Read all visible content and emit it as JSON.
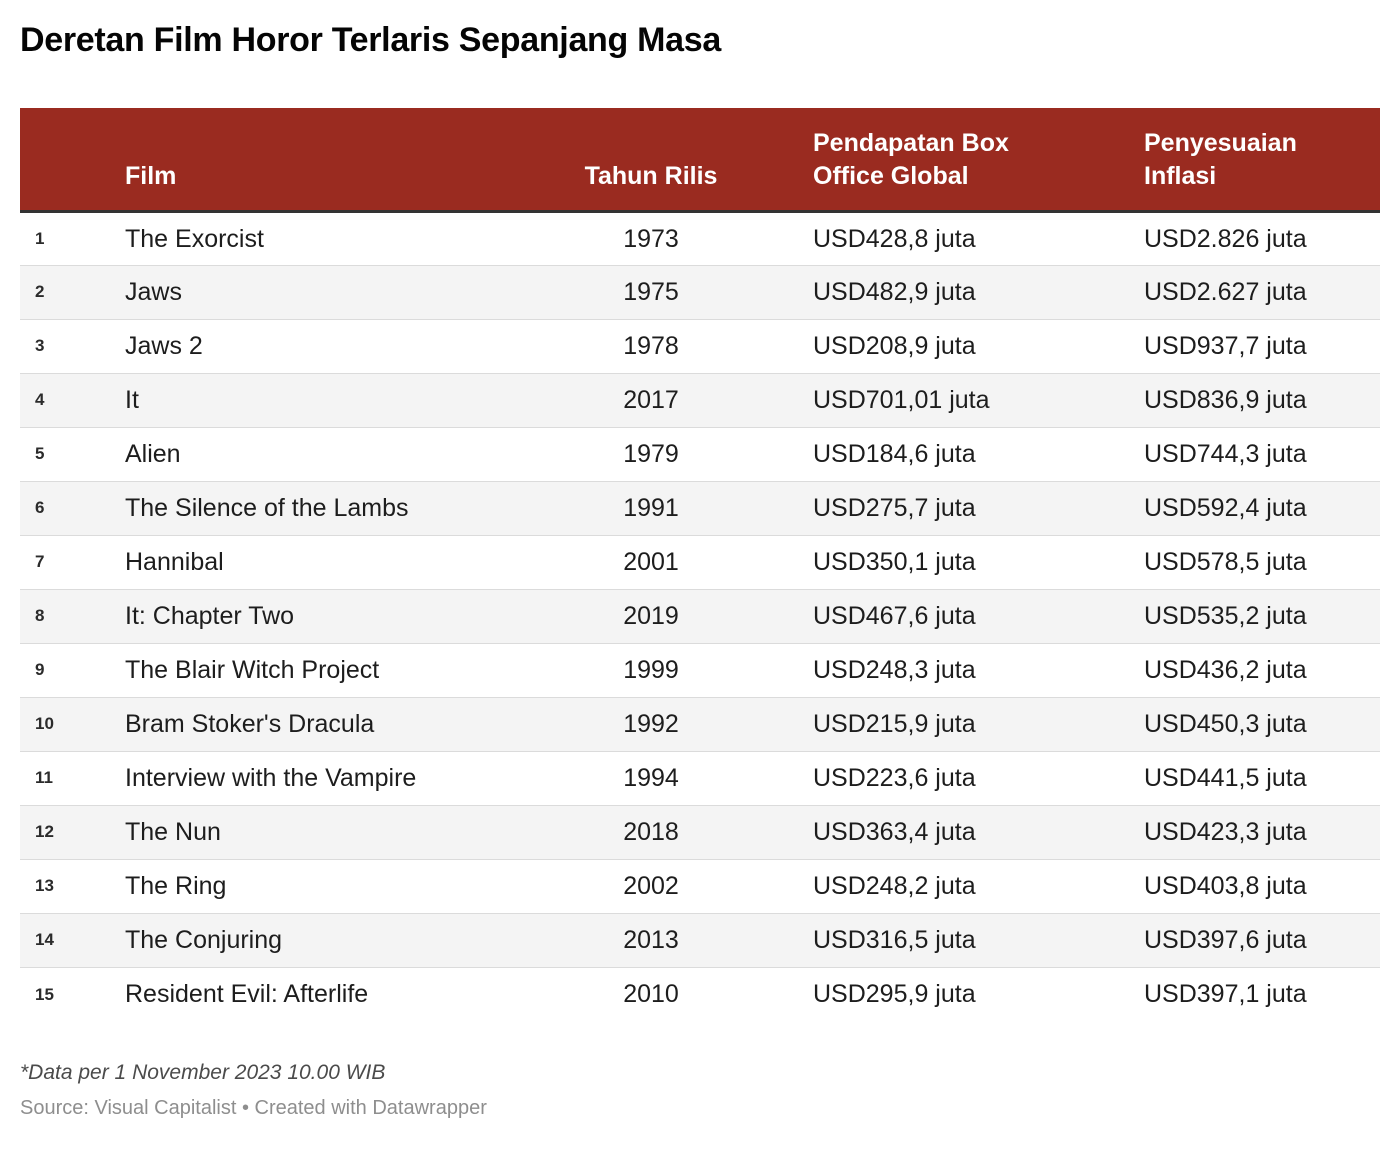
{
  "page_title": "Deretan Film Horor Terlaris Sepanjang Masa",
  "footer": {
    "note": "*Data per 1 November 2023 10.00 WIB",
    "source": "Source: Visual Capitalist • Created with Datawrapper"
  },
  "colors": {
    "header_bg": "#9A2B20",
    "header_text": "#FFFFFF",
    "row_alt_bg": "#F4F4F4",
    "divider": "#DBDBDB",
    "header_border": "#333333"
  },
  "chart_data": {
    "type": "table",
    "title": "Deretan Film Horor Terlaris Sepanjang Masa",
    "columns": [
      "",
      "Film",
      "Tahun Rilis",
      "Pendapatan Box Office Global",
      "Penyesuaian Inflasi"
    ],
    "rows": [
      [
        "1",
        "The Exorcist",
        "1973",
        "USD428,8 juta",
        "USD2.826 juta"
      ],
      [
        "2",
        "Jaws",
        "1975",
        "USD482,9 juta",
        "USD2.627 juta"
      ],
      [
        "3",
        "Jaws 2",
        "1978",
        "USD208,9 juta",
        "USD937,7 juta"
      ],
      [
        "4",
        "It",
        "2017",
        "USD701,01 juta",
        "USD836,9 juta"
      ],
      [
        "5",
        "Alien",
        "1979",
        "USD184,6 juta",
        "USD744,3 juta"
      ],
      [
        "6",
        "The Silence of the Lambs",
        "1991",
        "USD275,7 juta",
        "USD592,4 juta"
      ],
      [
        "7",
        "Hannibal",
        "2001",
        "USD350,1 juta",
        "USD578,5 juta"
      ],
      [
        "8",
        "It: Chapter Two",
        "2019",
        "USD467,6 juta",
        "USD535,2 juta"
      ],
      [
        "9",
        "The Blair Witch Project",
        "1999",
        "USD248,3 juta",
        "USD436,2 juta"
      ],
      [
        "10",
        "Bram Stoker's Dracula",
        "1992",
        "USD215,9 juta",
        "USD450,3 juta"
      ],
      [
        "11",
        "Interview with the Vampire",
        "1994",
        "USD223,6 juta",
        "USD441,5 juta"
      ],
      [
        "12",
        "The Nun",
        "2018",
        "USD363,4 juta",
        "USD423,3 juta"
      ],
      [
        "13",
        "The Ring",
        "2002",
        "USD248,2 juta",
        "USD403,8 juta"
      ],
      [
        "14",
        "The Conjuring",
        "2013",
        "USD316,5 juta",
        "USD397,6 juta"
      ],
      [
        "15",
        "Resident Evil: Afterlife",
        "2010",
        "USD295,9 juta",
        "USD397,1 juta"
      ]
    ]
  }
}
